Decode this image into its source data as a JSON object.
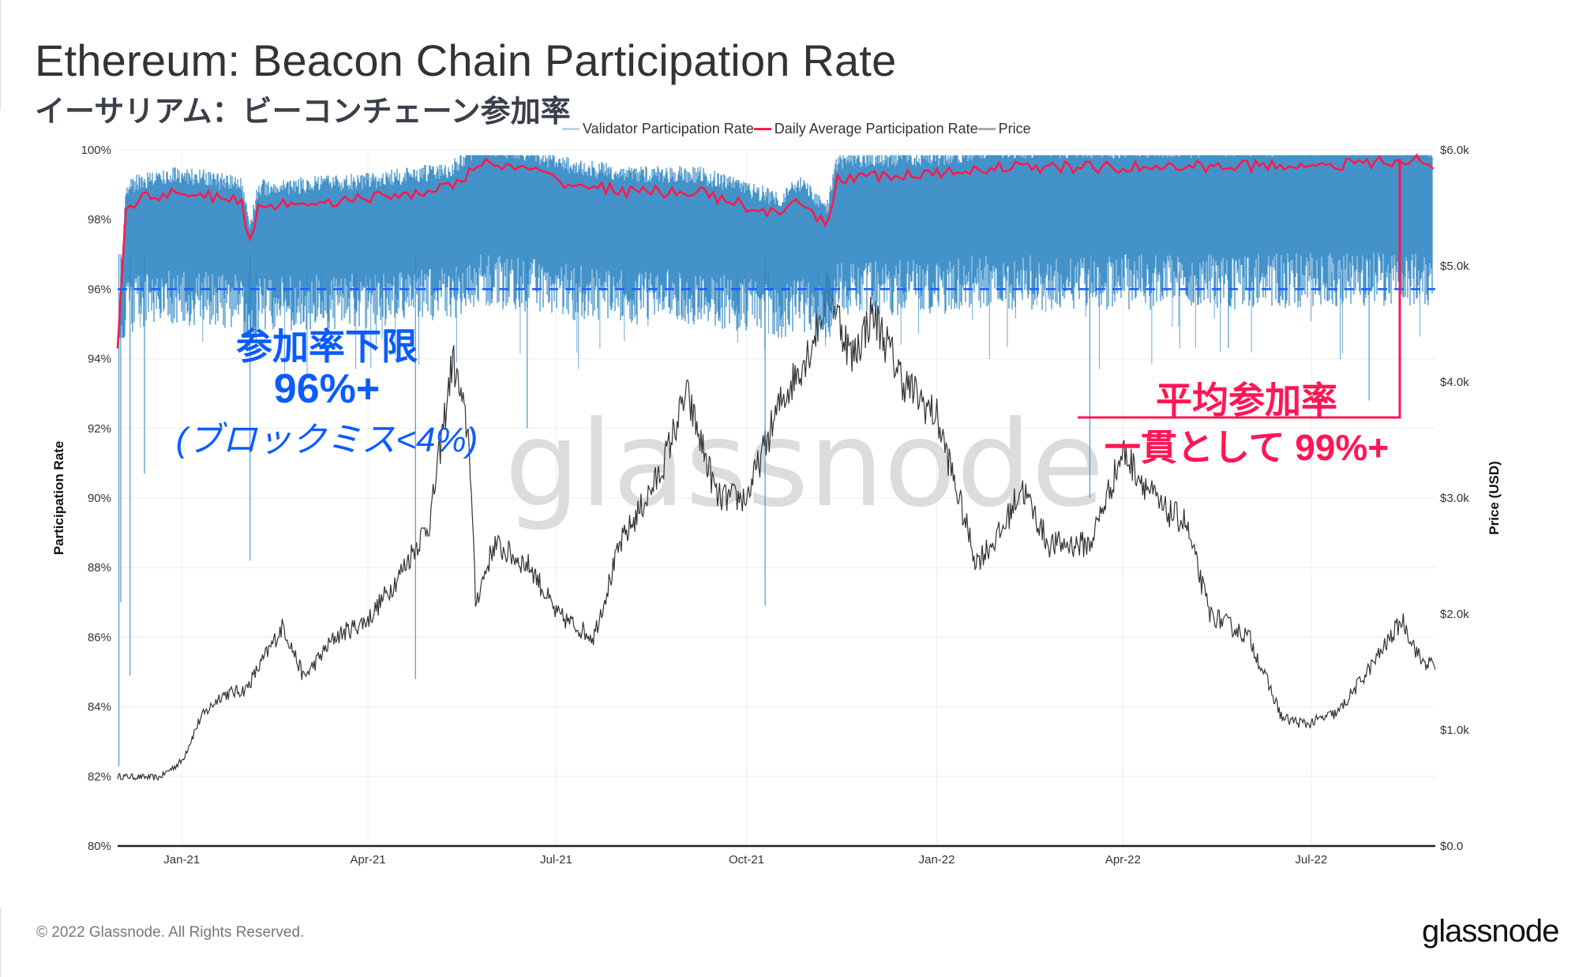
{
  "header": {
    "title": "Ethereum: Beacon Chain Participation Rate",
    "subtitle_jp": "イーサリアム：ビーコンチェーン参加率"
  },
  "annotations": {
    "lower_bound_title": "参加率下限",
    "lower_bound_value": "96%+",
    "lower_bound_note": "(ブロックミス<4%)",
    "average_title": "平均参加率",
    "average_value": "一貫として 99%+",
    "blue_color": "#0a5cff",
    "red_color": "#ff1654"
  },
  "footer": {
    "copyright": "© 2022 Glassnode. All Rights Reserved.",
    "logo": "glassnode",
    "watermark": "glassnode"
  },
  "chart_data": {
    "type": "line",
    "title": "Ethereum: Beacon Chain Participation Rate",
    "ylabel": "Participation Rate",
    "y2label": "Price (USD)",
    "ylim": [
      80,
      100
    ],
    "y2lim": [
      0,
      6000
    ],
    "yticks": [
      "80%",
      "82%",
      "84%",
      "86%",
      "88%",
      "90%",
      "92%",
      "94%",
      "96%",
      "98%",
      "100%"
    ],
    "y2ticks": [
      "$0.0",
      "$1.0k",
      "$2.0k",
      "$3.0k",
      "$4.0k",
      "$5.0k",
      "$6.0k"
    ],
    "x_start": "2020-12-01",
    "x_days_span": [
      0,
      637
    ],
    "xticks": [
      {
        "label": "Jan-21",
        "day": 31
      },
      {
        "label": "Apr-21",
        "day": 121
      },
      {
        "label": "Jul-21",
        "day": 212
      },
      {
        "label": "Oct-21",
        "day": 304
      },
      {
        "label": "Jan-22",
        "day": 396
      },
      {
        "label": "Apr-22",
        "day": 486
      },
      {
        "label": "Jul-22",
        "day": 577
      }
    ],
    "grid": true,
    "legend_position": "top",
    "reference_line": {
      "value": 96,
      "style": "dashed",
      "color": "#1a5cff"
    },
    "series": [
      {
        "name": "Validator Participation Rate",
        "color": "#2f86c4",
        "typical_range": [
          96.0,
          99.8
        ],
        "spikes": [
          [
            0.6,
            82.3
          ],
          [
            1.5,
            87.0
          ],
          [
            6,
            84.9
          ],
          [
            13,
            90.7
          ],
          [
            64,
            88.2
          ],
          [
            144,
            84.8
          ],
          [
            198,
            92.0
          ],
          [
            313,
            86.9
          ],
          [
            470,
            90.0
          ],
          [
            537,
            94.3
          ],
          [
            605,
            92.8
          ]
        ]
      },
      {
        "name": "Daily Average Participation Rate",
        "color": "#ff1a4b",
        "points": [
          [
            0,
            94.3
          ],
          [
            4,
            98.3
          ],
          [
            10,
            98.6
          ],
          [
            30,
            98.8
          ],
          [
            60,
            98.5
          ],
          [
            64,
            97.3
          ],
          [
            68,
            98.4
          ],
          [
            120,
            98.6
          ],
          [
            160,
            98.9
          ],
          [
            175,
            99.6
          ],
          [
            200,
            99.4
          ],
          [
            220,
            99.0
          ],
          [
            250,
            98.8
          ],
          [
            280,
            98.8
          ],
          [
            320,
            98.1
          ],
          [
            330,
            98.5
          ],
          [
            343,
            97.8
          ],
          [
            348,
            99.2
          ],
          [
            400,
            99.3
          ],
          [
            420,
            99.5
          ],
          [
            500,
            99.5
          ],
          [
            600,
            99.6
          ],
          [
            630,
            99.7
          ],
          [
            637,
            99.4
          ]
        ]
      },
      {
        "name": "Price",
        "color": "#333333",
        "axis": "right",
        "points": [
          [
            0,
            600
          ],
          [
            20,
            590
          ],
          [
            31,
            730
          ],
          [
            40,
            1100
          ],
          [
            50,
            1300
          ],
          [
            62,
            1350
          ],
          [
            80,
            1900
          ],
          [
            90,
            1450
          ],
          [
            105,
            1800
          ],
          [
            121,
            1950
          ],
          [
            135,
            2300
          ],
          [
            151,
            2800
          ],
          [
            162,
            4200
          ],
          [
            170,
            3500
          ],
          [
            173,
            2100
          ],
          [
            182,
            2600
          ],
          [
            200,
            2400
          ],
          [
            212,
            2000
          ],
          [
            230,
            1800
          ],
          [
            243,
            2600
          ],
          [
            262,
            3200
          ],
          [
            275,
            3900
          ],
          [
            290,
            3000
          ],
          [
            304,
            3000
          ],
          [
            320,
            3800
          ],
          [
            335,
            4300
          ],
          [
            344,
            4800
          ],
          [
            355,
            4200
          ],
          [
            365,
            4600
          ],
          [
            380,
            4000
          ],
          [
            396,
            3700
          ],
          [
            415,
            2450
          ],
          [
            427,
            2700
          ],
          [
            437,
            3100
          ],
          [
            450,
            2600
          ],
          [
            470,
            2600
          ],
          [
            486,
            3400
          ],
          [
            505,
            2900
          ],
          [
            516,
            2800
          ],
          [
            528,
            2000
          ],
          [
            547,
            1800
          ],
          [
            563,
            1100
          ],
          [
            575,
            1050
          ],
          [
            590,
            1150
          ],
          [
            608,
            1600
          ],
          [
            621,
            1950
          ],
          [
            630,
            1600
          ],
          [
            637,
            1550
          ]
        ]
      }
    ]
  }
}
